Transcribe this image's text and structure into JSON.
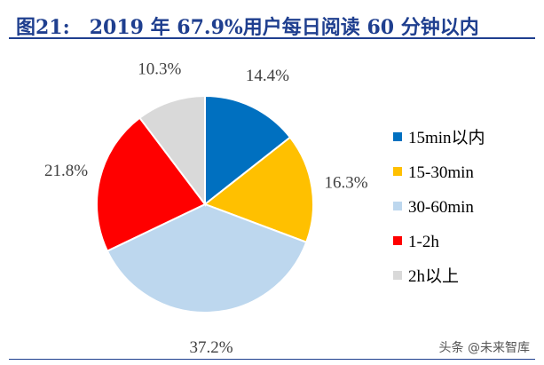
{
  "header": {
    "figure_no": "图21:",
    "title": "2019 年 67.9%用户每日阅读 60 分钟以内"
  },
  "chart_data": {
    "type": "pie",
    "start": "12 o'clock",
    "direction": "clockwise",
    "legend_position": "right",
    "slices": [
      {
        "name": "15min以内",
        "value": 14.4,
        "label": "14.4%",
        "color": "#0070c0"
      },
      {
        "name": "15-30min",
        "value": 16.3,
        "label": "16.3%",
        "color": "#ffc000"
      },
      {
        "name": "30-60min",
        "value": 37.2,
        "label": "37.2%",
        "color": "#bdd7ee"
      },
      {
        "name": "1-2h",
        "value": 21.8,
        "label": "21.8%",
        "color": "#ff0000"
      },
      {
        "name": "2h以上",
        "value": 10.3,
        "label": "10.3%",
        "color": "#d9d9d9"
      }
    ]
  },
  "watermark": "头条 @未来智库"
}
